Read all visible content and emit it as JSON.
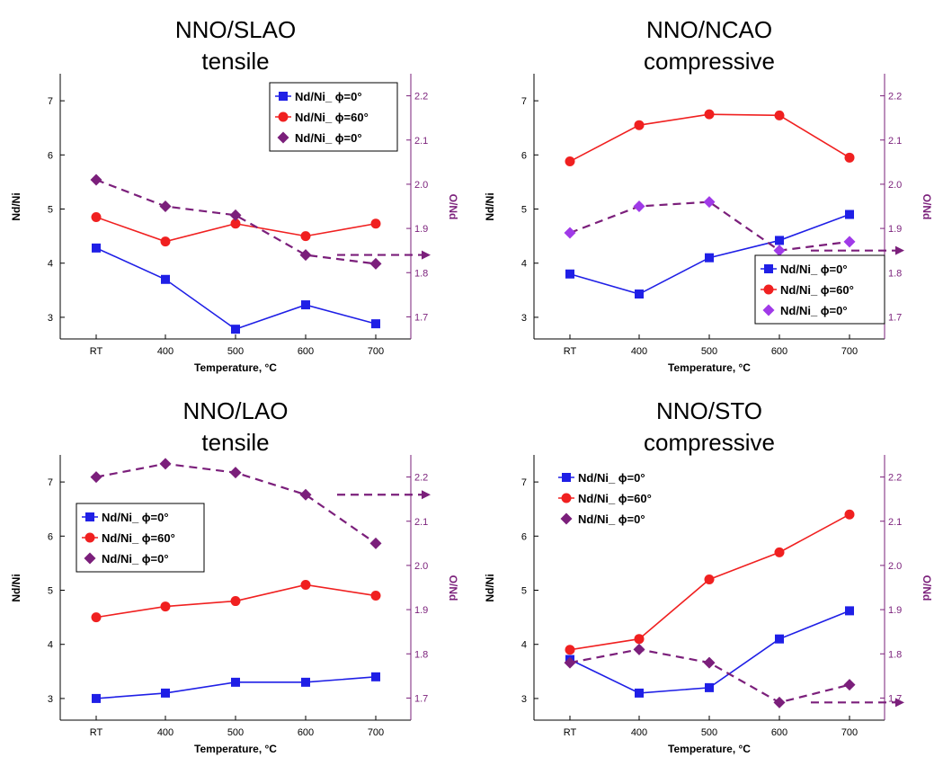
{
  "chart_data": [
    {
      "type": "line",
      "title": [
        "NNO/SLAO",
        "tensile"
      ],
      "xlabel": "Temperature, °C",
      "ylabel": "Nd/Ni",
      "y2label": "O/Nd",
      "categories": [
        "RT",
        "400",
        "500",
        "600",
        "700"
      ],
      "ylim": [
        2.6,
        7.5
      ],
      "y2lim": [
        1.65,
        2.25
      ],
      "yticks": [
        "3",
        "4",
        "5",
        "6",
        "7"
      ],
      "y2ticks": [
        "1.7",
        "1.8",
        "1.9",
        "2.0",
        "2.1",
        "2.2"
      ],
      "legend_pos": "top-right",
      "legend_box": true,
      "series": [
        {
          "name": "Nd/Ni_ ϕ=0°",
          "axis": "left",
          "marker": "square",
          "color": "#1f1fe6",
          "dash": false,
          "values": [
            4.28,
            3.7,
            2.78,
            3.23,
            2.88
          ]
        },
        {
          "name": "Nd/Ni_ ϕ=60°",
          "axis": "left",
          "marker": "circle",
          "color": "#f02020",
          "dash": false,
          "values": [
            4.85,
            4.4,
            4.73,
            4.5,
            4.73
          ]
        },
        {
          "name": "Nd/Ni_ ϕ=0°",
          "axis": "right",
          "marker": "diamond",
          "color": "#7b1f7b",
          "dash": true,
          "values": [
            2.01,
            1.95,
            1.93,
            1.84,
            1.82
          ]
        }
      ],
      "arrow_series": 2
    },
    {
      "type": "line",
      "title": [
        "NNO/NCAO",
        "compressive"
      ],
      "xlabel": "Temperature, °C",
      "ylabel": "Nd/Ni",
      "y2label": "O/Nd",
      "categories": [
        "RT",
        "400",
        "500",
        "600",
        "700"
      ],
      "ylim": [
        2.6,
        7.5
      ],
      "y2lim": [
        1.65,
        2.25
      ],
      "yticks": [
        "3",
        "4",
        "5",
        "6",
        "7"
      ],
      "y2ticks": [
        "1.7",
        "1.8",
        "1.9",
        "2.0",
        "2.1",
        "2.2"
      ],
      "legend_pos": "bottom-right",
      "legend_box": true,
      "series": [
        {
          "name": "Nd/Ni_ ϕ=0°",
          "axis": "left",
          "marker": "square",
          "color": "#1f1fe6",
          "dash": false,
          "values": [
            3.8,
            3.43,
            4.1,
            4.42,
            4.9
          ]
        },
        {
          "name": "Nd/Ni_ ϕ=60°",
          "axis": "left",
          "marker": "circle",
          "color": "#f02020",
          "dash": false,
          "values": [
            5.88,
            6.55,
            6.75,
            6.73,
            5.95
          ]
        },
        {
          "name": "Nd/Ni_ ϕ=0°",
          "axis": "right",
          "marker": "diamond",
          "color": "#a03ae8",
          "linecolor": "#7b1f7b",
          "dash": true,
          "values": [
            1.89,
            1.95,
            1.96,
            1.85,
            1.87
          ]
        }
      ],
      "arrow_series": 2
    },
    {
      "type": "line",
      "title": [
        "NNO/LAO",
        "tensile"
      ],
      "xlabel": "Temperature, °C",
      "ylabel": "Nd/Ni",
      "y2label": "O/Nd",
      "categories": [
        "RT",
        "400",
        "500",
        "600",
        "700"
      ],
      "ylim": [
        2.6,
        7.5
      ],
      "y2lim": [
        1.65,
        2.25
      ],
      "yticks": [
        "3",
        "4",
        "5",
        "6",
        "7"
      ],
      "y2ticks": [
        "1.7",
        "1.8",
        "1.9",
        "2.0",
        "2.1",
        "2.2"
      ],
      "legend_pos": "left",
      "legend_box": true,
      "series": [
        {
          "name": "Nd/Ni_ ϕ=0°",
          "axis": "left",
          "marker": "square",
          "color": "#1f1fe6",
          "dash": false,
          "values": [
            3.0,
            3.1,
            3.3,
            3.3,
            3.4
          ]
        },
        {
          "name": "Nd/Ni_ ϕ=60°",
          "axis": "left",
          "marker": "circle",
          "color": "#f02020",
          "dash": false,
          "values": [
            4.5,
            4.7,
            4.8,
            5.1,
            4.9
          ]
        },
        {
          "name": "Nd/Ni_ ϕ=0°",
          "axis": "right",
          "marker": "diamond",
          "color": "#7b1f7b",
          "dash": true,
          "values": [
            2.2,
            2.23,
            2.21,
            2.16,
            2.05
          ]
        }
      ],
      "arrow_series": 2
    },
    {
      "type": "line",
      "title": [
        "NNO/STO",
        "compressive"
      ],
      "xlabel": "Temperature, °C",
      "ylabel": "Nd/Ni",
      "y2label": "O/Nd",
      "categories": [
        "RT",
        "400",
        "500",
        "600",
        "700"
      ],
      "ylim": [
        2.6,
        7.5
      ],
      "y2lim": [
        1.65,
        2.25
      ],
      "yticks": [
        "3",
        "4",
        "5",
        "6",
        "7"
      ],
      "y2ticks": [
        "1.7",
        "1.8",
        "1.9",
        "2.0",
        "2.1",
        "2.2"
      ],
      "legend_pos": "top-left",
      "legend_box": false,
      "series": [
        {
          "name": "Nd/Ni_ ϕ=0°",
          "axis": "left",
          "marker": "square",
          "color": "#1f1fe6",
          "dash": false,
          "values": [
            3.72,
            3.1,
            3.2,
            4.1,
            4.62
          ]
        },
        {
          "name": "Nd/Ni_ ϕ=60°",
          "axis": "left",
          "marker": "circle",
          "color": "#f02020",
          "dash": false,
          "values": [
            3.9,
            4.1,
            5.2,
            5.7,
            6.4
          ]
        },
        {
          "name": "Nd/Ni_ ϕ=0°",
          "axis": "right",
          "marker": "diamond",
          "color": "#7b1f7b",
          "dash": true,
          "values": [
            1.78,
            1.81,
            1.78,
            1.69,
            1.73
          ]
        }
      ],
      "arrow_series": 2
    }
  ]
}
